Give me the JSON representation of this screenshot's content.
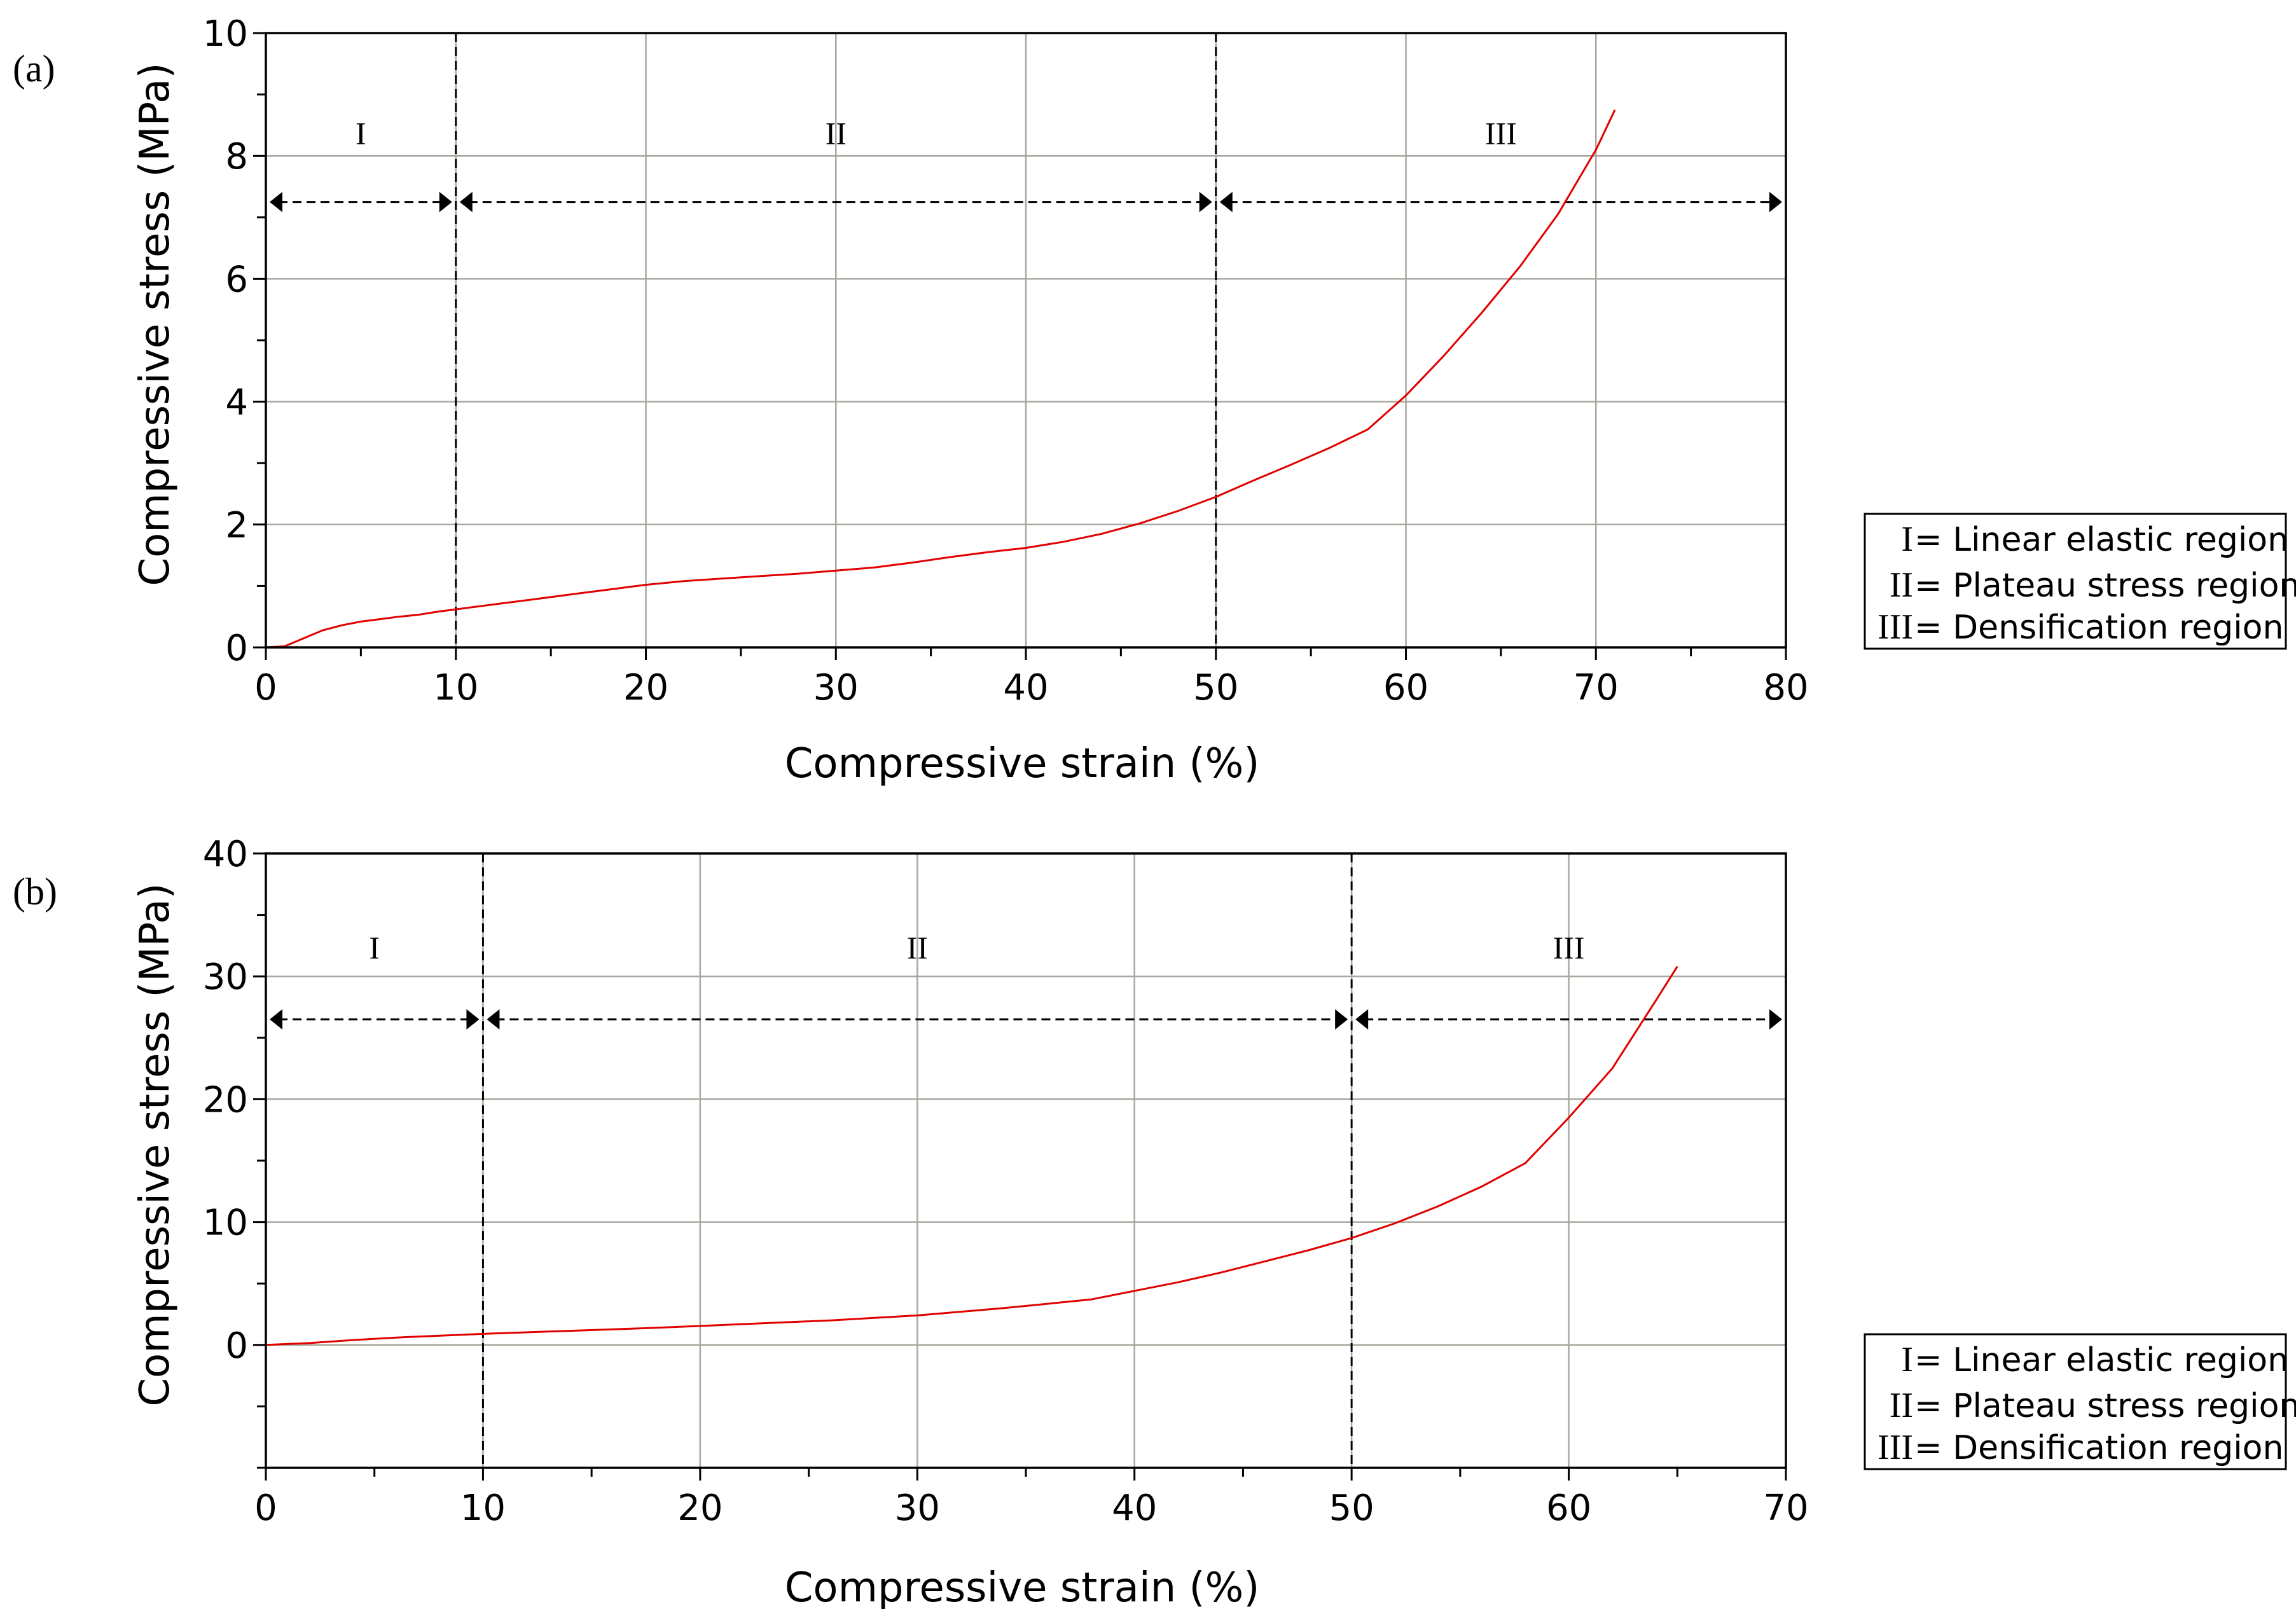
{
  "panels": [
    {
      "id": "a",
      "label": "(a)",
      "legend": [
        {
          "symbol": "I",
          "text": "= Linear elastic region"
        },
        {
          "symbol": "II",
          "text": "= Plateau stress region"
        },
        {
          "symbol": "III",
          "text": "= Densification region"
        }
      ]
    },
    {
      "id": "b",
      "label": "(b)",
      "legend": [
        {
          "symbol": "I",
          "text": "= Linear elastic region"
        },
        {
          "symbol": "II",
          "text": "= Plateau stress region"
        },
        {
          "symbol": "III",
          "text": "= Densification region"
        }
      ]
    }
  ],
  "colors": {
    "curve": "#e00000",
    "grid": "#a8a8a0",
    "axis": "#000000",
    "legend_border": "#000000"
  },
  "chart_data": [
    {
      "type": "line",
      "xlabel": "Compressive strain (%)",
      "ylabel": "Compressive stress (MPa)",
      "xlim": [
        0,
        80
      ],
      "ylim": [
        0,
        10
      ],
      "xticks": [
        0,
        10,
        20,
        30,
        40,
        50,
        60,
        70,
        80
      ],
      "yticks": [
        0,
        2,
        4,
        6,
        8,
        10
      ],
      "x_minor_step": 5,
      "y_minor_step": 1,
      "grid": true,
      "region_boundaries": [
        10,
        50
      ],
      "regions": [
        {
          "label": "I",
          "start": 0,
          "end": 10
        },
        {
          "label": "II",
          "start": 10,
          "end": 50
        },
        {
          "label": "III",
          "start": 50,
          "end": 80
        }
      ],
      "arrow_level": 7.25,
      "region_label_level": 8.4,
      "legend_position": "right",
      "series": [
        {
          "x": [
            0,
            1,
            2,
            3,
            4,
            5,
            6,
            7,
            8,
            9,
            10,
            12,
            14,
            16,
            18,
            20,
            22,
            24,
            26,
            28,
            30,
            32,
            34,
            36,
            38,
            40,
            42,
            44,
            46,
            48,
            50,
            52,
            54,
            56,
            58,
            60,
            62,
            64,
            66,
            68,
            70,
            71
          ],
          "y": [
            0,
            0.02,
            0.15,
            0.28,
            0.36,
            0.42,
            0.46,
            0.5,
            0.53,
            0.58,
            0.62,
            0.7,
            0.78,
            0.86,
            0.94,
            1.02,
            1.08,
            1.12,
            1.16,
            1.2,
            1.25,
            1.3,
            1.38,
            1.47,
            1.55,
            1.62,
            1.72,
            1.85,
            2.02,
            2.22,
            2.45,
            2.72,
            2.98,
            3.25,
            3.55,
            4.1,
            4.75,
            5.45,
            6.2,
            7.05,
            8.1,
            8.75
          ]
        }
      ]
    },
    {
      "type": "line",
      "xlabel": "Compressive strain (%)",
      "ylabel": "Compressive stress (MPa)",
      "xlim": [
        0,
        70
      ],
      "ylim": [
        -10,
        40
      ],
      "xticks": [
        0,
        10,
        20,
        30,
        40,
        50,
        60,
        70
      ],
      "yticks": [
        0,
        10,
        20,
        30,
        40
      ],
      "x_minor_step": 5,
      "y_minor_step": 5,
      "grid": true,
      "region_boundaries": [
        10,
        50
      ],
      "regions": [
        {
          "label": "I",
          "start": 0,
          "end": 10
        },
        {
          "label": "II",
          "start": 10,
          "end": 50
        },
        {
          "label": "III",
          "start": 50,
          "end": 70
        }
      ],
      "arrow_level": 26.5,
      "region_label_level": 32.5,
      "legend_position": "right",
      "series": [
        {
          "x": [
            0,
            2,
            4,
            6,
            8,
            10,
            14,
            18,
            22,
            26,
            30,
            34,
            38,
            40,
            42,
            44,
            46,
            48,
            50,
            52,
            54,
            56,
            58,
            60,
            62,
            64,
            65
          ],
          "y": [
            0,
            0.15,
            0.4,
            0.6,
            0.75,
            0.9,
            1.15,
            1.4,
            1.7,
            2.0,
            2.4,
            3.0,
            3.7,
            4.4,
            5.1,
            5.9,
            6.8,
            7.7,
            8.7,
            9.9,
            11.3,
            12.9,
            14.8,
            18.5,
            22.5,
            28.0,
            30.8
          ]
        }
      ]
    }
  ]
}
